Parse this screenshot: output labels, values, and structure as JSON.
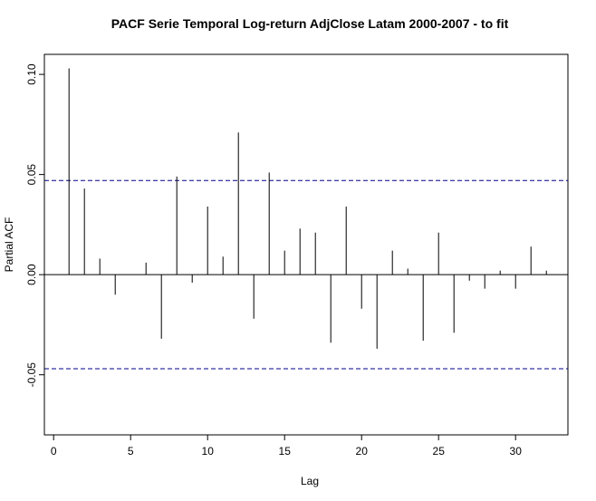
{
  "chart_data": {
    "type": "bar",
    "title": "PACF Serie Temporal Log-return AdjClose Latam 2000-2007 - to fit",
    "xlabel": "Lag",
    "ylabel": "Partial ACF",
    "xlim": [
      -0.6,
      33.4
    ],
    "ylim": [
      -0.08,
      0.11
    ],
    "x_ticks": [
      0,
      5,
      10,
      15,
      20,
      25,
      30
    ],
    "x_tick_labels": [
      "0",
      "5",
      "10",
      "15",
      "20",
      "25",
      "30"
    ],
    "y_ticks": [
      -0.05,
      0.0,
      0.05,
      0.1
    ],
    "y_tick_labels": [
      "-0.05",
      "0.00",
      "0.05",
      "0.10"
    ],
    "confidence_bound": 0.047,
    "x": [
      1,
      2,
      3,
      4,
      5,
      6,
      7,
      8,
      9,
      10,
      11,
      12,
      13,
      14,
      15,
      16,
      17,
      18,
      19,
      20,
      21,
      22,
      23,
      24,
      25,
      26,
      27,
      28,
      29,
      30,
      31,
      32
    ],
    "values": [
      0.103,
      0.043,
      0.008,
      -0.01,
      0.0,
      0.006,
      -0.032,
      0.049,
      -0.004,
      0.034,
      0.009,
      0.071,
      -0.022,
      0.051,
      0.012,
      0.023,
      0.021,
      -0.034,
      0.034,
      -0.017,
      -0.037,
      0.012,
      0.003,
      -0.033,
      0.021,
      -0.029,
      -0.003,
      -0.007,
      0.002,
      -0.007,
      0.014,
      0.002
    ],
    "colors": {
      "line": "#000000",
      "bound": "#00008b"
    },
    "grid": false
  }
}
